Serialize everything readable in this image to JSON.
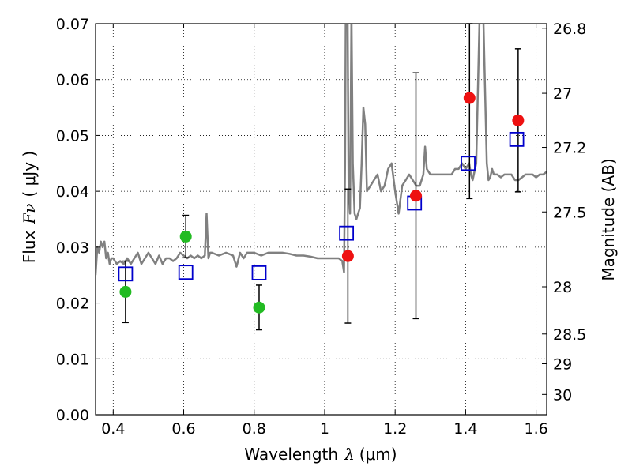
{
  "chart_data": {
    "type": "scatter",
    "xlabel_text": "Wavelength",
    "xlabel_symbol": "λ",
    "xlabel_unit": "(μm)",
    "ylabel_text": "Flux",
    "ylabel_symbol": "Fν",
    "ylabel_unit": "( μJy )",
    "y2label": "Magnitude (AB)",
    "xlim": [
      0.35,
      1.63
    ],
    "ylim": [
      0.0,
      0.07
    ],
    "grid": true,
    "grid_style": "dotted",
    "xticks": [
      {
        "value": 0.4,
        "label": "0.4"
      },
      {
        "value": 0.6,
        "label": "0.6"
      },
      {
        "value": 0.8,
        "label": "0.8"
      },
      {
        "value": 1.0,
        "label": "1"
      },
      {
        "value": 1.2,
        "label": "1.2"
      },
      {
        "value": 1.4,
        "label": "1.4"
      },
      {
        "value": 1.6,
        "label": "1.6"
      }
    ],
    "yticks": [
      {
        "value": 0.0,
        "label": "0.00"
      },
      {
        "value": 0.01,
        "label": "0.01"
      },
      {
        "value": 0.02,
        "label": "0.02"
      },
      {
        "value": 0.03,
        "label": "0.03"
      },
      {
        "value": 0.04,
        "label": "0.04"
      },
      {
        "value": 0.05,
        "label": "0.05"
      },
      {
        "value": 0.06,
        "label": "0.06"
      },
      {
        "value": 0.07,
        "label": "0.07"
      }
    ],
    "y2ticks": [
      {
        "value": 26.8,
        "label": "26.8"
      },
      {
        "value": 27.0,
        "label": "27"
      },
      {
        "value": 27.2,
        "label": "27.2"
      },
      {
        "value": 27.5,
        "label": "27.5"
      },
      {
        "value": 28.0,
        "label": "28"
      },
      {
        "value": 28.5,
        "label": "28.5"
      },
      {
        "value": 29.0,
        "label": "29"
      },
      {
        "value": 30.0,
        "label": "30"
      }
    ],
    "series": [
      {
        "marker": "line",
        "color": "#808080",
        "x": [
          0.35,
          0.355,
          0.36,
          0.365,
          0.37,
          0.375,
          0.38,
          0.385,
          0.39,
          0.395,
          0.4,
          0.41,
          0.42,
          0.43,
          0.44,
          0.45,
          0.46,
          0.47,
          0.48,
          0.49,
          0.5,
          0.51,
          0.52,
          0.53,
          0.54,
          0.55,
          0.56,
          0.57,
          0.58,
          0.59,
          0.6,
          0.61,
          0.62,
          0.63,
          0.64,
          0.65,
          0.66,
          0.665,
          0.67,
          0.675,
          0.68,
          0.7,
          0.72,
          0.74,
          0.75,
          0.76,
          0.77,
          0.78,
          0.8,
          0.82,
          0.84,
          0.86,
          0.88,
          0.9,
          0.92,
          0.94,
          0.96,
          0.98,
          1.0,
          1.02,
          1.04,
          1.05,
          1.055,
          1.058,
          1.06,
          1.065,
          1.068,
          1.072,
          1.076,
          1.08,
          1.085,
          1.09,
          1.095,
          1.1,
          1.105,
          1.11,
          1.115,
          1.12,
          1.13,
          1.14,
          1.15,
          1.16,
          1.17,
          1.18,
          1.19,
          1.2,
          1.21,
          1.22,
          1.23,
          1.24,
          1.25,
          1.26,
          1.27,
          1.28,
          1.285,
          1.29,
          1.3,
          1.31,
          1.32,
          1.33,
          1.34,
          1.35,
          1.36,
          1.37,
          1.38,
          1.39,
          1.4,
          1.41,
          1.415,
          1.42,
          1.43,
          1.44,
          1.45,
          1.46,
          1.465,
          1.47,
          1.475,
          1.48,
          1.49,
          1.5,
          1.51,
          1.52,
          1.53,
          1.54,
          1.55,
          1.56,
          1.57,
          1.58,
          1.59,
          1.6,
          1.61,
          1.62,
          1.63
        ],
        "y": [
          0.025,
          0.03,
          0.029,
          0.031,
          0.03,
          0.031,
          0.028,
          0.029,
          0.027,
          0.028,
          0.028,
          0.027,
          0.0275,
          0.027,
          0.028,
          0.027,
          0.028,
          0.029,
          0.027,
          0.028,
          0.029,
          0.028,
          0.027,
          0.0285,
          0.027,
          0.028,
          0.028,
          0.0275,
          0.028,
          0.029,
          0.0285,
          0.028,
          0.0285,
          0.028,
          0.0285,
          0.028,
          0.0285,
          0.036,
          0.028,
          0.029,
          0.029,
          0.0285,
          0.029,
          0.0285,
          0.0265,
          0.029,
          0.028,
          0.029,
          0.029,
          0.0285,
          0.029,
          0.029,
          0.029,
          0.0288,
          0.0285,
          0.0285,
          0.0283,
          0.028,
          0.028,
          0.028,
          0.028,
          0.0275,
          0.0255,
          0.045,
          0.072,
          0.072,
          0.04,
          0.036,
          0.072,
          0.045,
          0.036,
          0.035,
          0.036,
          0.037,
          0.045,
          0.055,
          0.052,
          0.04,
          0.041,
          0.042,
          0.043,
          0.04,
          0.041,
          0.044,
          0.045,
          0.04,
          0.036,
          0.041,
          0.042,
          0.043,
          0.042,
          0.041,
          0.041,
          0.043,
          0.048,
          0.044,
          0.043,
          0.043,
          0.043,
          0.043,
          0.043,
          0.043,
          0.043,
          0.044,
          0.044,
          0.045,
          0.044,
          0.045,
          0.043,
          0.042,
          0.045,
          0.072,
          0.072,
          0.045,
          0.042,
          0.0425,
          0.044,
          0.043,
          0.043,
          0.0425,
          0.043,
          0.043,
          0.043,
          0.042,
          0.042,
          0.0425,
          0.043,
          0.043,
          0.043,
          0.0425,
          0.043,
          0.043,
          0.0435
        ]
      },
      {
        "marker": "square",
        "color": "#0000cc",
        "x": [
          0.435,
          0.606,
          0.814,
          1.062,
          1.255,
          1.407,
          1.545
        ],
        "y": [
          0.0252,
          0.0255,
          0.0254,
          0.0325,
          0.0379,
          0.045,
          0.0493
        ]
      },
      {
        "marker": "circle",
        "color": "#22bb22",
        "x": [
          0.435,
          0.606,
          0.814
        ],
        "y": [
          0.022,
          0.0319,
          0.0192
        ],
        "err": [
          0.0055,
          0.0038,
          0.004
        ]
      },
      {
        "marker": "circle",
        "color": "#ee1111",
        "x": [
          1.066,
          1.259,
          1.411,
          1.549
        ],
        "y": [
          0.0284,
          0.0392,
          0.0567,
          0.0527
        ],
        "err": [
          0.012,
          0.022,
          0.018,
          0.0128
        ]
      }
    ]
  }
}
